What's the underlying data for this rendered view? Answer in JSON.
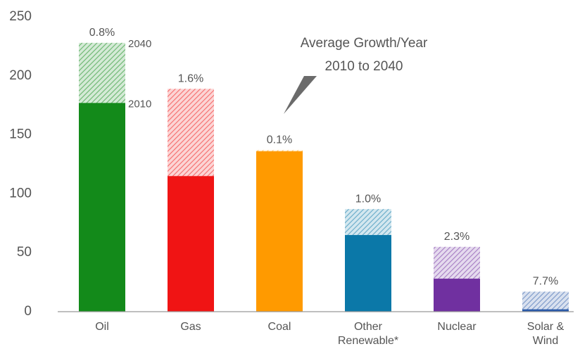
{
  "chart_data": {
    "type": "bar",
    "categories": [
      "Oil",
      "Gas",
      "Coal",
      "Other Renewable*",
      "Nuclear",
      "Solar & Wind"
    ],
    "colors": [
      "#138a1a",
      "#f01414",
      "#ff9a00",
      "#0b78a8",
      "#7030a0",
      "#2a5aa8"
    ],
    "series": [
      {
        "name": "2040",
        "style": "hatched",
        "values": [
          228,
          189,
          137,
          87,
          55,
          17
        ]
      },
      {
        "name": "2010",
        "style": "solid",
        "values": [
          177,
          115,
          136,
          65,
          28,
          2
        ]
      }
    ],
    "growth": {
      "values": [
        0.8,
        1.6,
        0.1,
        1.0,
        2.3,
        7.7
      ],
      "value_labels": [
        "0.8%",
        "1.6%",
        "0.1%",
        "1.0%",
        "2.3%",
        "7.7%"
      ]
    },
    "annotation": [
      "Average Growth/Year",
      "2010 to 2040"
    ],
    "ylim": [
      0,
      250
    ],
    "yticks": [
      0,
      50,
      100,
      150,
      200,
      250
    ],
    "grid": false
  }
}
